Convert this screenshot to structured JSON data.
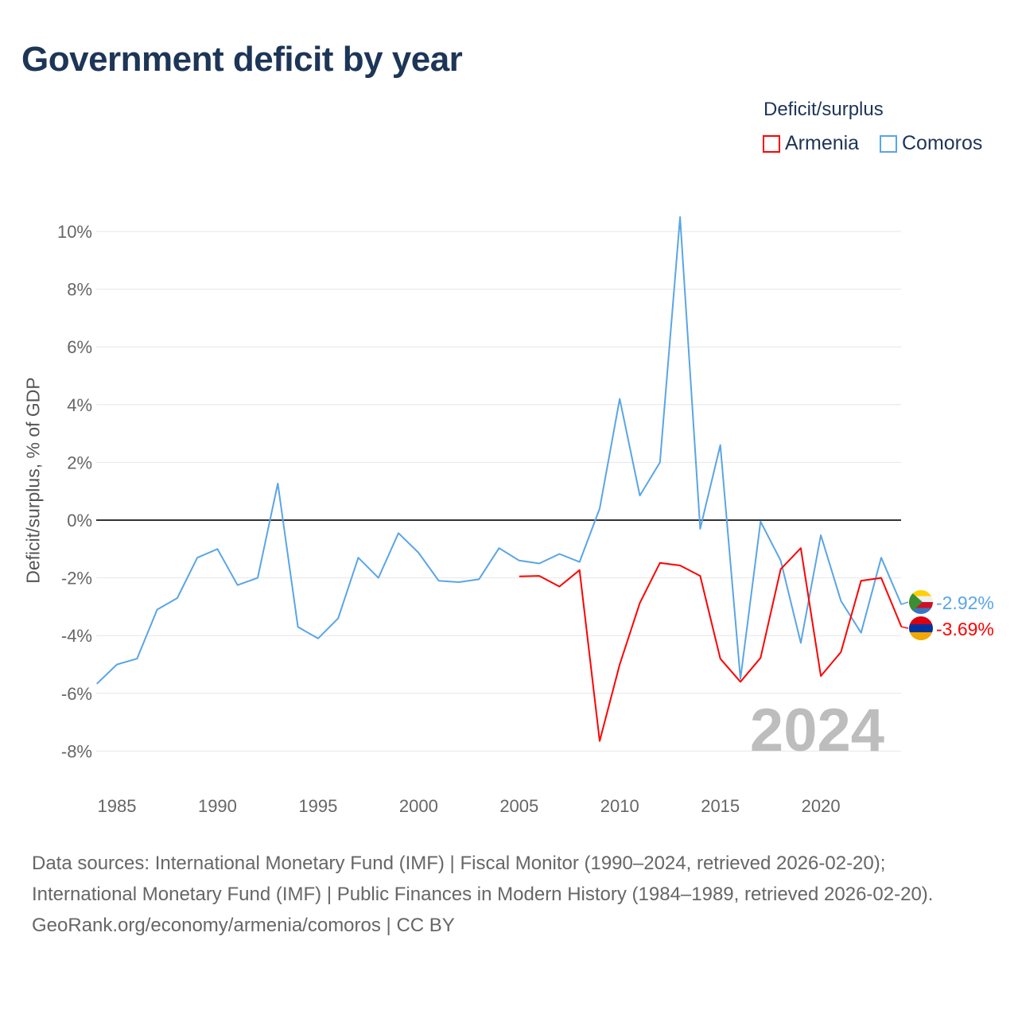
{
  "title": "Government deficit by year",
  "legend": {
    "title": "Deficit/surplus",
    "items": [
      {
        "name": "Armenia",
        "color": "#ff0000"
      },
      {
        "name": "Comoros",
        "color": "#5aa5e6"
      }
    ]
  },
  "footer": {
    "sources": "Data sources: International Monetary Fund (IMF) | Fiscal Monitor (1990–2024, retrieved 2026-02-20); International Monetary Fund (IMF) | Public Finances in Modern History (1984–1989, retrieved 2026-02-20).",
    "link": "GeoRank.org/economy/armenia/comoros | CC BY"
  },
  "chart_data": {
    "type": "line",
    "title": "Government deficit by year",
    "xlabel": "",
    "ylabel": "Deficit/surplus, % of GDP",
    "xlim": [
      1984,
      2024
    ],
    "ylim": [
      -9,
      11
    ],
    "xticks": [
      1985,
      1990,
      1995,
      2000,
      2005,
      2010,
      2015,
      2020
    ],
    "yticks": [
      10,
      8,
      6,
      4,
      2,
      0,
      -2,
      -4,
      -6,
      -8
    ],
    "ytick_labels": [
      "10%",
      "8%",
      "6%",
      "4%",
      "2%",
      "0%",
      "-2%",
      "-4%",
      "-6%",
      "-8%"
    ],
    "year_watermark": "2024",
    "series": [
      {
        "name": "Comoros",
        "color": "#5aa5e6",
        "end_label": "-2.92%",
        "start": 1984,
        "values": [
          -5.67,
          -5.0,
          -4.8,
          -3.1,
          -2.7,
          -1.3,
          -1.0,
          -2.25,
          -2.0,
          1.27,
          -3.7,
          -4.1,
          -3.4,
          -1.3,
          -2.0,
          -0.45,
          -1.13,
          -2.1,
          -2.15,
          -2.05,
          -0.97,
          -1.4,
          -1.5,
          -1.17,
          -1.45,
          0.4,
          4.2,
          0.85,
          2.0,
          10.5,
          -0.3,
          2.6,
          -5.5,
          -0.05,
          -1.4,
          -4.25,
          -0.52,
          -2.8,
          -3.9,
          -1.3,
          -2.92
        ]
      },
      {
        "name": "Armenia",
        "color": "#ff0000",
        "end_label": "-3.69%",
        "start": 2005,
        "values": [
          -1.95,
          -1.93,
          -2.3,
          -1.73,
          -7.65,
          -5.0,
          -2.87,
          -1.48,
          -1.57,
          -1.93,
          -4.8,
          -5.6,
          -4.77,
          -1.7,
          -0.97,
          -5.4,
          -4.57,
          -2.1,
          -2.0,
          -3.69
        ]
      }
    ]
  }
}
